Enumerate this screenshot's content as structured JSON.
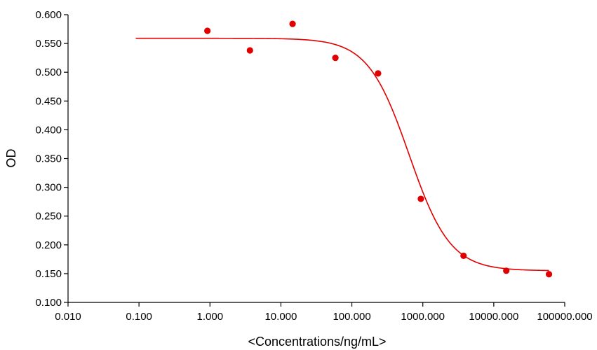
{
  "chart_data": {
    "type": "scatter",
    "title": "",
    "xlabel": "<Concentrations/ng/mL>",
    "ylabel": "OD",
    "x_scale": "log",
    "xlim": [
      0.01,
      100000
    ],
    "ylim": [
      0.1,
      0.6
    ],
    "grid": false,
    "legend": "none",
    "color": "#e00000",
    "x_ticks": [
      0.01,
      0.1,
      1,
      10,
      100,
      1000,
      10000,
      100000
    ],
    "x_tick_labels": [
      "0.010",
      "0.100",
      "1.000",
      "10.000",
      "100.000",
      "1000.000",
      "10000.000",
      "100000.000"
    ],
    "y_ticks": [
      0.1,
      0.15,
      0.2,
      0.25,
      0.3,
      0.35,
      0.4,
      0.45,
      0.5,
      0.55,
      0.6
    ],
    "y_tick_labels": [
      "0.100",
      "0.150",
      "0.200",
      "0.250",
      "0.300",
      "0.350",
      "0.400",
      "0.450",
      "0.500",
      "0.550",
      "0.600"
    ],
    "points": {
      "x": [
        0.92,
        3.66,
        14.6,
        58.6,
        234,
        938,
        3750,
        15000,
        60000
      ],
      "y": [
        0.572,
        0.538,
        0.584,
        0.525,
        0.498,
        0.28,
        0.181,
        0.155,
        0.149
      ]
    },
    "fit_curve": {
      "model": "4PL",
      "top": 0.559,
      "bottom": 0.155,
      "ec50": 640,
      "hill": 1.5,
      "x_range": [
        0.09,
        60000
      ]
    }
  }
}
